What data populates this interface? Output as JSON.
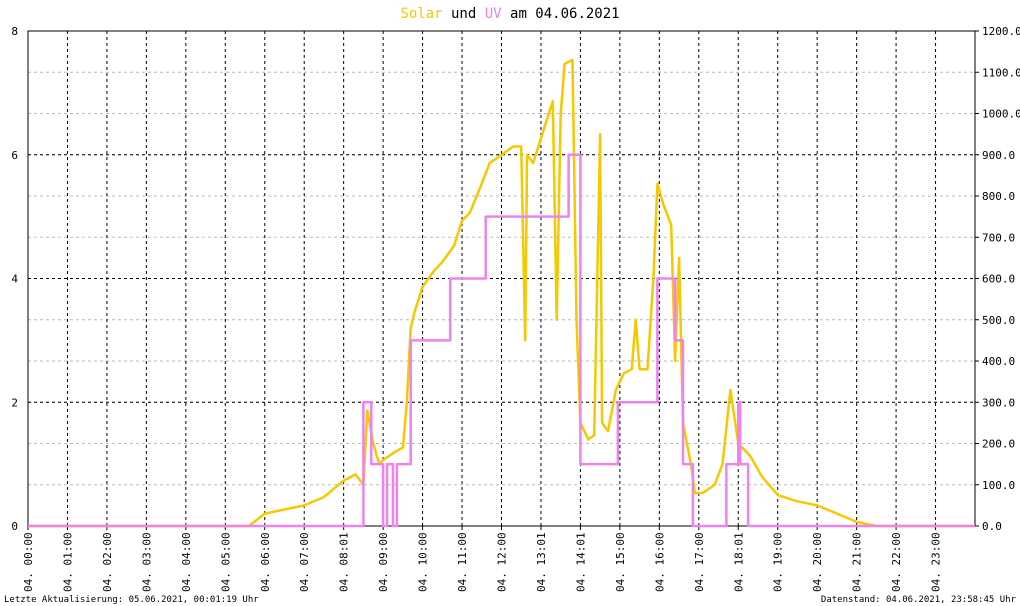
{
  "chart_data": {
    "type": "line",
    "title_words": [
      "und",
      "am 04.06.2021"
    ],
    "footer_left": "Letzte Aktualisierung: 05.06.2021, 00:01:19 Uhr",
    "footer_right": "Datenstand: 04.06.2021, 23:58:45 Uhr",
    "xlim": [
      0,
      24
    ],
    "xticks": [
      {
        "value": 0,
        "label": "04. 00:00"
      },
      {
        "value": 1,
        "label": "04. 01:00"
      },
      {
        "value": 2,
        "label": "04. 02:00"
      },
      {
        "value": 3,
        "label": "04. 03:00"
      },
      {
        "value": 4,
        "label": "04. 04:00"
      },
      {
        "value": 5,
        "label": "04. 05:00"
      },
      {
        "value": 6,
        "label": "04. 06:00"
      },
      {
        "value": 7,
        "label": "04. 07:00"
      },
      {
        "value": 8,
        "label": "04. 08:01"
      },
      {
        "value": 9,
        "label": "04. 09:00"
      },
      {
        "value": 10,
        "label": "04. 10:00"
      },
      {
        "value": 11,
        "label": "04. 11:00"
      },
      {
        "value": 12,
        "label": "04. 12:00"
      },
      {
        "value": 13,
        "label": "04. 13:01"
      },
      {
        "value": 14,
        "label": "04. 14:01"
      },
      {
        "value": 15,
        "label": "04. 15:00"
      },
      {
        "value": 16,
        "label": "04. 16:00"
      },
      {
        "value": 17,
        "label": "04. 17:00"
      },
      {
        "value": 18,
        "label": "04. 18:01"
      },
      {
        "value": 19,
        "label": "04. 19:00"
      },
      {
        "value": 20,
        "label": "04. 20:00"
      },
      {
        "value": 21,
        "label": "04. 21:00"
      },
      {
        "value": 22,
        "label": "04. 22:00"
      },
      {
        "value": 23,
        "label": "04. 23:00"
      }
    ],
    "ylim": [
      0,
      8
    ],
    "yticks": [
      0,
      2,
      4,
      6,
      8
    ],
    "y2lim": [
      0,
      1200
    ],
    "y2ticks": [
      {
        "value": 0,
        "label": "0.0"
      },
      {
        "value": 100,
        "label": "100.0"
      },
      {
        "value": 200,
        "label": "200.0"
      },
      {
        "value": 300,
        "label": "300.0"
      },
      {
        "value": 400,
        "label": "400.0"
      },
      {
        "value": 500,
        "label": "500.0"
      },
      {
        "value": 600,
        "label": "600.0"
      },
      {
        "value": 700,
        "label": "700.0"
      },
      {
        "value": 800,
        "label": "800.0"
      },
      {
        "value": 900,
        "label": "900.0"
      },
      {
        "value": 1000,
        "label": "1000.0"
      },
      {
        "value": 1100,
        "label": "1100.0"
      },
      {
        "value": 1200,
        "label": "1200.0"
      }
    ],
    "grid": true,
    "series": [
      {
        "name": "Solar",
        "color": "#f5c800",
        "axis": "y2",
        "x": [
          0,
          5.6,
          6,
          6.5,
          7,
          7.5,
          8,
          8.3,
          8.5,
          8.6,
          8.75,
          8.9,
          9,
          9.3,
          9.5,
          9.6,
          9.7,
          9.8,
          10,
          10.3,
          10.5,
          10.8,
          11,
          11.2,
          11.5,
          11.7,
          12,
          12.3,
          12.5,
          12.6,
          12.65,
          12.8,
          13,
          13.2,
          13.3,
          13.4,
          13.5,
          13.6,
          13.8,
          13.9,
          14,
          14.2,
          14.35,
          14.5,
          14.55,
          14.7,
          14.9,
          15.1,
          15.3,
          15.4,
          15.5,
          15.7,
          15.85,
          15.95,
          16.1,
          16.3,
          16.4,
          16.5,
          16.6,
          16.8,
          16.9,
          17.1,
          17.4,
          17.6,
          17.8,
          18,
          18.3,
          18.6,
          19,
          19.5,
          20,
          20.5,
          21,
          21.5,
          24
        ],
        "values": [
          0,
          0,
          30,
          40,
          50,
          70,
          110,
          125,
          100,
          280,
          200,
          150,
          160,
          180,
          190,
          300,
          480,
          520,
          580,
          620,
          640,
          680,
          740,
          760,
          830,
          880,
          900,
          920,
          920,
          450,
          900,
          880,
          940,
          1000,
          1030,
          500,
          1000,
          1120,
          1130,
          500,
          250,
          210,
          220,
          950,
          250,
          230,
          330,
          370,
          380,
          500,
          380,
          380,
          600,
          830,
          780,
          730,
          400,
          650,
          250,
          150,
          80,
          80,
          100,
          150,
          330,
          200,
          170,
          120,
          75,
          60,
          50,
          30,
          10,
          0,
          0
        ]
      },
      {
        "name": "UV",
        "color": "#ee82ee",
        "axis": "y",
        "x": [
          0,
          8.5,
          8.5,
          8.7,
          8.7,
          9.0,
          9.0,
          9.1,
          9.1,
          9.25,
          9.25,
          9.35,
          9.35,
          9.7,
          9.7,
          10.7,
          10.7,
          11.6,
          11.6,
          13.7,
          13.7,
          14.0,
          14.0,
          14.95,
          14.95,
          15.95,
          15.95,
          16.4,
          16.4,
          16.6,
          16.6,
          16.85,
          16.85,
          17.7,
          17.7,
          18.0,
          18.0,
          18.05,
          18.05,
          18.25,
          18.25,
          24
        ],
        "values": [
          0,
          0,
          2,
          2,
          1,
          1,
          0,
          0,
          1,
          1,
          0,
          0,
          1,
          1,
          3,
          3,
          4,
          4,
          5,
          5,
          6,
          6,
          1,
          1,
          2,
          2,
          4,
          4,
          3,
          3,
          1,
          1,
          0,
          0,
          1,
          1,
          2,
          2,
          1,
          1,
          0,
          0
        ]
      }
    ]
  }
}
